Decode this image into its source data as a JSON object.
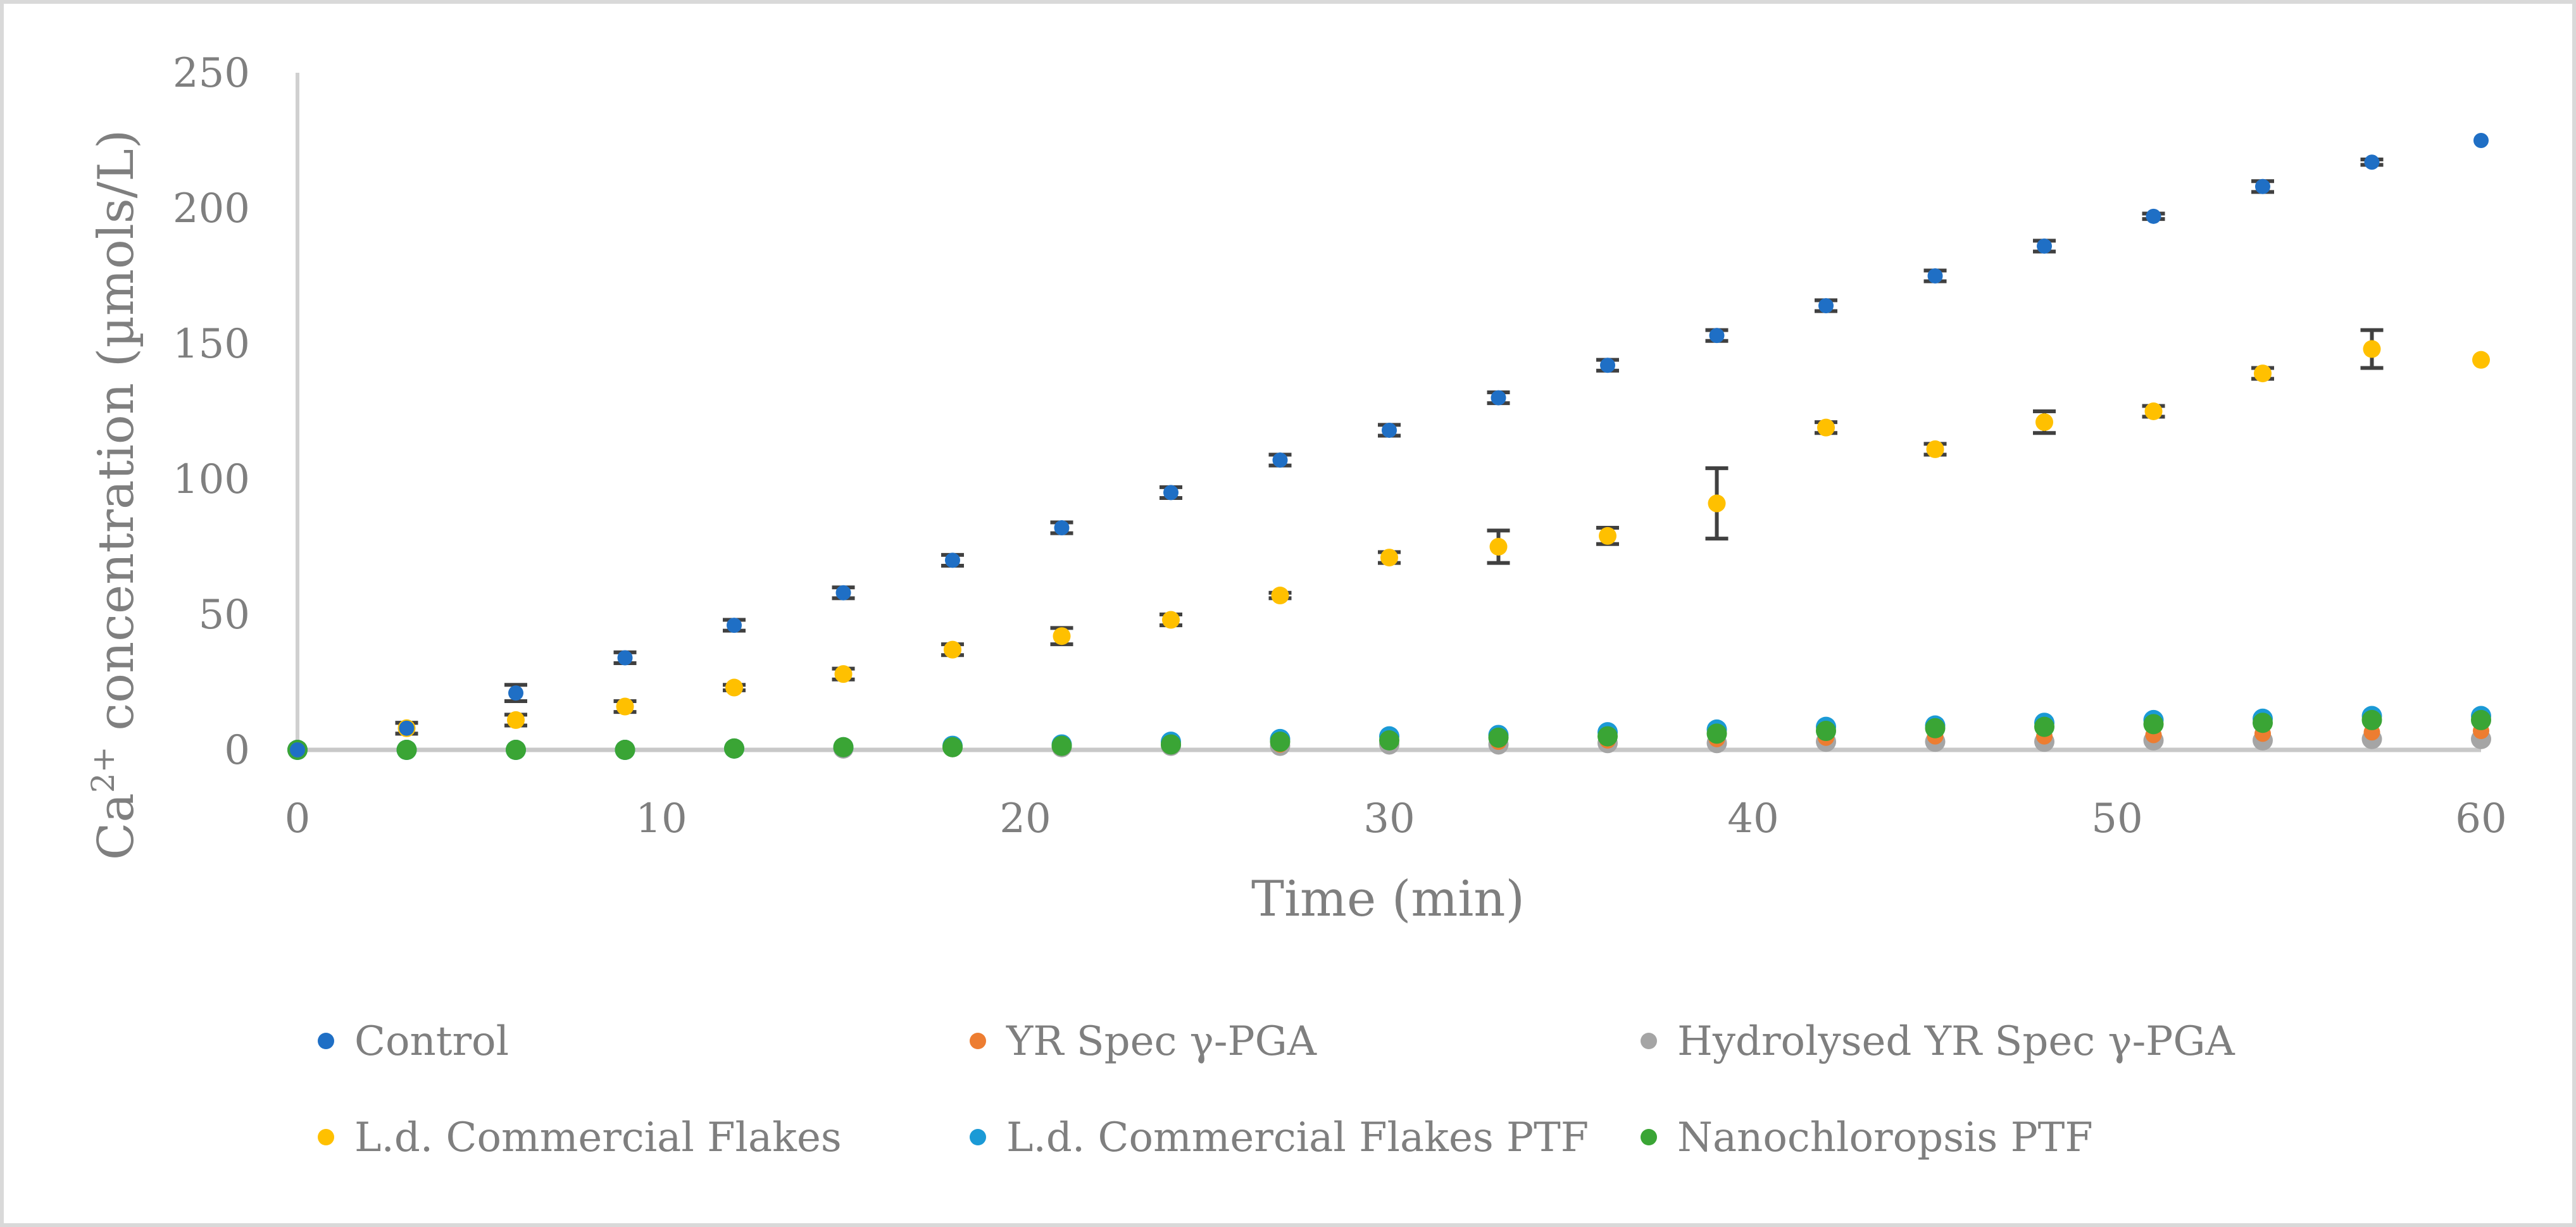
{
  "chart_data": {
    "type": "scatter",
    "title": "",
    "xlabel": "Time (min)",
    "ylabel": "Ca2+ concentration (µmols/L)",
    "ylabel_parts": {
      "pre": "Ca",
      "sup": "2+",
      "post": " concentration (µmols/L)"
    },
    "xlim": [
      0,
      60
    ],
    "ylim": [
      0,
      250
    ],
    "xticks": [
      0,
      10,
      20,
      30,
      40,
      50,
      60
    ],
    "yticks": [
      0,
      50,
      100,
      150,
      200,
      250
    ],
    "legend_position": "bottom",
    "series": [
      {
        "name": "Control",
        "color": "#1f6fc5",
        "x": [
          0,
          3,
          6,
          9,
          12,
          15,
          18,
          21,
          24,
          27,
          30,
          33,
          36,
          39,
          42,
          45,
          48,
          51,
          54,
          57,
          60
        ],
        "values": [
          0,
          8,
          21,
          34,
          46,
          58,
          70,
          82,
          95,
          107,
          118,
          130,
          142,
          153,
          164,
          175,
          186,
          197,
          208,
          217,
          225
        ],
        "errors": [
          0,
          2,
          3,
          2,
          2,
          2,
          2,
          2,
          2,
          2,
          2,
          2,
          2,
          2,
          2,
          2,
          2,
          1,
          2,
          1,
          0
        ]
      },
      {
        "name": "YR Spec γ-PGA",
        "color": "#ed7d31",
        "x": [
          0,
          3,
          6,
          9,
          12,
          15,
          18,
          21,
          24,
          27,
          30,
          33,
          36,
          39,
          42,
          45,
          48,
          51,
          54,
          57,
          60
        ],
        "values": [
          0,
          0,
          0,
          0,
          0.5,
          1,
          1,
          1.5,
          2,
          2,
          3,
          3,
          3.5,
          4,
          4.5,
          5,
          5,
          5.5,
          6,
          6.5,
          7
        ],
        "errors": [
          0,
          0,
          0,
          0,
          0,
          0,
          0,
          0,
          0,
          0,
          0,
          0,
          0,
          0,
          0,
          0,
          0,
          0,
          0,
          0,
          0
        ]
      },
      {
        "name": "Hydrolysed YR Spec γ-PGA",
        "color": "#a5a5a5",
        "x": [
          0,
          3,
          6,
          9,
          12,
          15,
          18,
          21,
          24,
          27,
          30,
          33,
          36,
          39,
          42,
          45,
          48,
          51,
          54,
          57,
          60
        ],
        "values": [
          0,
          0,
          0,
          0,
          0.5,
          0.5,
          1,
          1,
          1.5,
          1.5,
          2,
          2,
          2.5,
          2.5,
          3,
          3,
          3,
          3.5,
          3.5,
          4,
          4
        ],
        "errors": [
          0,
          0,
          0,
          0,
          0,
          0,
          0,
          0,
          0,
          0,
          0,
          0,
          0,
          0,
          0,
          0,
          0,
          0,
          0,
          0,
          0
        ]
      },
      {
        "name": "L.d. Commercial Flakes",
        "color": "#ffc000",
        "x": [
          3,
          6,
          9,
          12,
          15,
          18,
          21,
          24,
          27,
          30,
          33,
          36,
          39,
          42,
          45,
          48,
          51,
          54,
          57,
          60
        ],
        "values": [
          8,
          11,
          16,
          23,
          28,
          37,
          42,
          48,
          57,
          71,
          75,
          79,
          91,
          119,
          111,
          121,
          125,
          139,
          148,
          144
        ],
        "errors": [
          2,
          2,
          2,
          1,
          2,
          2,
          3,
          2,
          1,
          2,
          6,
          3,
          13,
          2,
          2,
          4,
          2,
          2,
          7,
          0
        ]
      },
      {
        "name": "L.d. Commercial Flakes PTF",
        "color": "#1b9ad6",
        "x": [
          0,
          3,
          6,
          9,
          12,
          15,
          18,
          21,
          24,
          27,
          30,
          33,
          36,
          39,
          42,
          45,
          48,
          51,
          54,
          57,
          60
        ],
        "values": [
          0,
          0,
          0,
          0,
          0.5,
          1,
          1.5,
          2,
          3,
          4,
          5,
          5.5,
          6.5,
          7.5,
          8.5,
          9,
          10,
          11,
          11.5,
          12.5,
          12.5
        ],
        "errors": [
          0,
          0,
          0,
          0,
          0,
          0,
          0,
          0,
          0,
          0,
          0,
          0,
          0,
          0,
          0,
          0,
          0,
          0,
          0,
          0,
          0
        ]
      },
      {
        "name": "Nanochloropsis PTF",
        "color": "#3aa535",
        "x": [
          0,
          3,
          6,
          9,
          12,
          15,
          18,
          21,
          24,
          27,
          30,
          33,
          36,
          39,
          42,
          45,
          48,
          51,
          54,
          57,
          60
        ],
        "values": [
          0,
          0,
          0,
          0,
          0.5,
          1,
          1,
          1.5,
          2,
          3,
          3.5,
          4.5,
          5,
          6,
          7,
          8,
          8.5,
          9.5,
          10,
          11,
          11
        ],
        "errors": [
          0,
          0,
          0,
          0,
          0,
          0,
          0,
          0,
          0,
          0,
          0,
          0,
          0,
          0,
          0,
          0,
          0,
          0,
          0,
          0,
          0
        ]
      }
    ]
  }
}
